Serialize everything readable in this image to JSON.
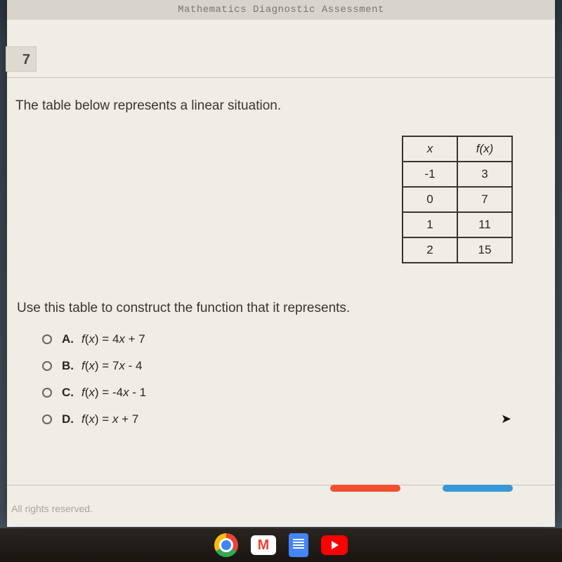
{
  "titlebar": "Mathematics Diagnostic Assessment",
  "question_number": "7",
  "prompt": "The table below represents a linear situation.",
  "table": {
    "col_x_header": "x",
    "col_fx_header": "f(x)",
    "rows": [
      {
        "x": "-1",
        "fx": "3"
      },
      {
        "x": "0",
        "fx": "7"
      },
      {
        "x": "1",
        "fx": "11"
      },
      {
        "x": "2",
        "fx": "15"
      }
    ]
  },
  "instruction": "Use this table to construct the function that it represents.",
  "options": [
    {
      "letter": "A.",
      "text": "f(x) = 4x + 7"
    },
    {
      "letter": "B.",
      "text": "f(x) = 7x - 4"
    },
    {
      "letter": "C.",
      "text": "f(x) = -4x - 1"
    },
    {
      "letter": "D.",
      "text": "f(x) = x + 7"
    }
  ],
  "footer": "All rights reserved.",
  "colors": {
    "pill_red": "#f05030",
    "pill_blue": "#3898d8",
    "page_bg": "#f0ede6",
    "text": "#3a352f",
    "border": "#3a352f"
  }
}
